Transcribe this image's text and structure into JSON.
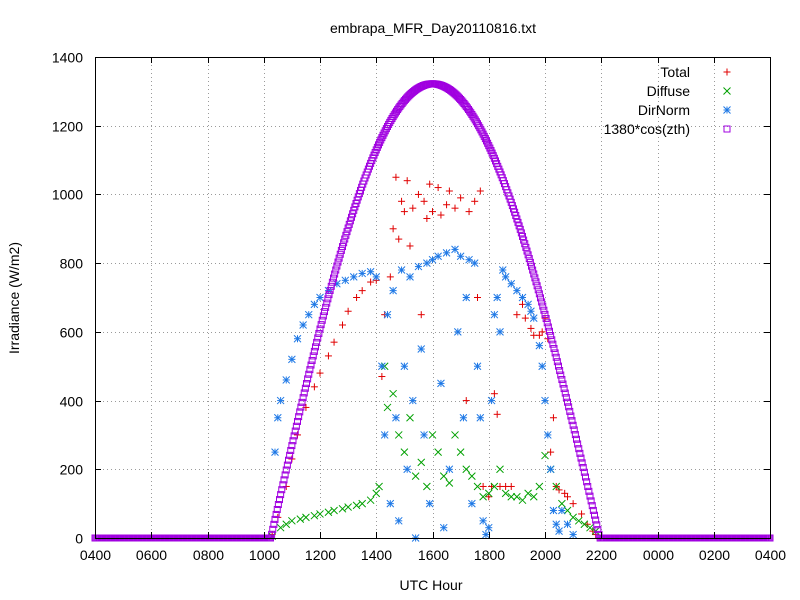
{
  "chart_data": {
    "type": "scatter",
    "title": "embrapa_MFR_Day20110816.txt",
    "xlabel": "UTC Hour",
    "ylabel": "Irradiance (W/m2)",
    "xlim": [
      4,
      28
    ],
    "ylim": [
      0,
      1400
    ],
    "x_ticks": [
      {
        "value": 4,
        "label": "0400"
      },
      {
        "value": 6,
        "label": "0600"
      },
      {
        "value": 8,
        "label": "0800"
      },
      {
        "value": 10,
        "label": "1000"
      },
      {
        "value": 12,
        "label": "1200"
      },
      {
        "value": 14,
        "label": "1400"
      },
      {
        "value": 16,
        "label": "1600"
      },
      {
        "value": 18,
        "label": "1800"
      },
      {
        "value": 20,
        "label": "2000"
      },
      {
        "value": 22,
        "label": "2200"
      },
      {
        "value": 24,
        "label": "0000"
      },
      {
        "value": 26,
        "label": "0200"
      },
      {
        "value": 28,
        "label": "0400"
      }
    ],
    "y_ticks": [
      0,
      200,
      400,
      600,
      800,
      1000,
      1200,
      1400
    ],
    "grid": true,
    "legend_position": "top-right",
    "series": [
      {
        "name": "Total",
        "marker": "plus",
        "color": "#e00000",
        "points": [
          [
            10.3,
            10
          ],
          [
            10.5,
            60
          ],
          [
            10.8,
            150
          ],
          [
            11.0,
            230
          ],
          [
            11.2,
            300
          ],
          [
            11.5,
            380
          ],
          [
            11.8,
            440
          ],
          [
            12.0,
            480
          ],
          [
            12.3,
            530
          ],
          [
            12.5,
            570
          ],
          [
            12.8,
            620
          ],
          [
            13.0,
            660
          ],
          [
            13.3,
            700
          ],
          [
            13.5,
            720
          ],
          [
            13.8,
            745
          ],
          [
            14.0,
            750
          ],
          [
            14.2,
            470
          ],
          [
            14.3,
            650
          ],
          [
            14.5,
            760
          ],
          [
            14.6,
            900
          ],
          [
            14.7,
            1050
          ],
          [
            14.8,
            870
          ],
          [
            14.9,
            980
          ],
          [
            15.0,
            950
          ],
          [
            15.1,
            1040
          ],
          [
            15.2,
            850
          ],
          [
            15.3,
            960
          ],
          [
            15.5,
            1000
          ],
          [
            15.6,
            650
          ],
          [
            15.7,
            980
          ],
          [
            15.8,
            930
          ],
          [
            15.9,
            1030
          ],
          [
            16.0,
            950
          ],
          [
            16.2,
            1020
          ],
          [
            16.3,
            940
          ],
          [
            16.5,
            970
          ],
          [
            16.6,
            1010
          ],
          [
            16.8,
            960
          ],
          [
            17.0,
            990
          ],
          [
            17.2,
            400
          ],
          [
            17.3,
            950
          ],
          [
            17.5,
            980
          ],
          [
            17.6,
            700
          ],
          [
            17.7,
            1010
          ],
          [
            17.8,
            150
          ],
          [
            18.0,
            120
          ],
          [
            18.1,
            150
          ],
          [
            18.2,
            420
          ],
          [
            18.3,
            360
          ],
          [
            18.4,
            150
          ],
          [
            18.6,
            150
          ],
          [
            18.8,
            150
          ],
          [
            19.0,
            650
          ],
          [
            19.2,
            680
          ],
          [
            19.3,
            640
          ],
          [
            19.5,
            610
          ],
          [
            19.6,
            590
          ],
          [
            19.8,
            590
          ],
          [
            19.9,
            600
          ],
          [
            20.0,
            640
          ],
          [
            20.1,
            580
          ],
          [
            20.2,
            250
          ],
          [
            20.3,
            350
          ],
          [
            20.4,
            150
          ],
          [
            20.5,
            140
          ],
          [
            20.7,
            130
          ],
          [
            20.8,
            120
          ],
          [
            21.0,
            100
          ],
          [
            21.3,
            70
          ],
          [
            21.5,
            40
          ],
          [
            21.7,
            20
          ],
          [
            21.8,
            10
          ]
        ]
      },
      {
        "name": "Diffuse",
        "marker": "cross",
        "color": "#00a000",
        "points": [
          [
            10.3,
            5
          ],
          [
            10.6,
            30
          ],
          [
            10.8,
            40
          ],
          [
            11.0,
            50
          ],
          [
            11.3,
            55
          ],
          [
            11.5,
            60
          ],
          [
            11.8,
            65
          ],
          [
            12.0,
            70
          ],
          [
            12.3,
            75
          ],
          [
            12.5,
            80
          ],
          [
            12.8,
            85
          ],
          [
            13.0,
            90
          ],
          [
            13.3,
            95
          ],
          [
            13.5,
            100
          ],
          [
            13.8,
            110
          ],
          [
            14.0,
            130
          ],
          [
            14.1,
            150
          ],
          [
            14.3,
            500
          ],
          [
            14.4,
            380
          ],
          [
            14.6,
            420
          ],
          [
            14.8,
            300
          ],
          [
            15.0,
            250
          ],
          [
            15.2,
            350
          ],
          [
            15.4,
            180
          ],
          [
            15.6,
            220
          ],
          [
            15.8,
            150
          ],
          [
            16.0,
            300
          ],
          [
            16.2,
            250
          ],
          [
            16.4,
            180
          ],
          [
            16.6,
            160
          ],
          [
            16.8,
            300
          ],
          [
            17.0,
            250
          ],
          [
            17.2,
            200
          ],
          [
            17.4,
            180
          ],
          [
            17.6,
            150
          ],
          [
            17.8,
            120
          ],
          [
            18.0,
            130
          ],
          [
            18.2,
            150
          ],
          [
            18.4,
            200
          ],
          [
            18.6,
            130
          ],
          [
            18.8,
            120
          ],
          [
            19.0,
            120
          ],
          [
            19.2,
            110
          ],
          [
            19.4,
            130
          ],
          [
            19.6,
            120
          ],
          [
            19.8,
            150
          ],
          [
            20.0,
            240
          ],
          [
            20.2,
            200
          ],
          [
            20.4,
            150
          ],
          [
            20.6,
            100
          ],
          [
            20.8,
            80
          ],
          [
            21.0,
            60
          ],
          [
            21.2,
            50
          ],
          [
            21.4,
            40
          ],
          [
            21.6,
            30
          ],
          [
            21.8,
            20
          ]
        ]
      },
      {
        "name": "DirNorm",
        "marker": "star",
        "color": "#1e78e6",
        "points": [
          [
            10.4,
            250
          ],
          [
            10.5,
            350
          ],
          [
            10.6,
            400
          ],
          [
            10.8,
            460
          ],
          [
            11.0,
            520
          ],
          [
            11.2,
            580
          ],
          [
            11.4,
            620
          ],
          [
            11.6,
            650
          ],
          [
            11.8,
            680
          ],
          [
            12.0,
            700
          ],
          [
            12.3,
            720
          ],
          [
            12.6,
            740
          ],
          [
            12.9,
            750
          ],
          [
            13.2,
            760
          ],
          [
            13.5,
            770
          ],
          [
            13.8,
            775
          ],
          [
            14.0,
            760
          ],
          [
            14.2,
            500
          ],
          [
            14.3,
            300
          ],
          [
            14.4,
            650
          ],
          [
            14.5,
            100
          ],
          [
            14.6,
            720
          ],
          [
            14.7,
            350
          ],
          [
            14.8,
            50
          ],
          [
            14.9,
            780
          ],
          [
            15.0,
            500
          ],
          [
            15.1,
            200
          ],
          [
            15.2,
            760
          ],
          [
            15.3,
            400
          ],
          [
            15.4,
            0
          ],
          [
            15.5,
            790
          ],
          [
            15.6,
            550
          ],
          [
            15.7,
            300
          ],
          [
            15.8,
            800
          ],
          [
            15.9,
            100
          ],
          [
            16.0,
            810
          ],
          [
            16.2,
            820
          ],
          [
            16.3,
            450
          ],
          [
            16.4,
            30
          ],
          [
            16.5,
            830
          ],
          [
            16.6,
            200
          ],
          [
            16.8,
            840
          ],
          [
            16.9,
            600
          ],
          [
            17.0,
            820
          ],
          [
            17.1,
            350
          ],
          [
            17.2,
            700
          ],
          [
            17.3,
            810
          ],
          [
            17.4,
            100
          ],
          [
            17.5,
            800
          ],
          [
            17.6,
            500
          ],
          [
            17.7,
            350
          ],
          [
            17.8,
            50
          ],
          [
            17.9,
            10
          ],
          [
            18.0,
            30
          ],
          [
            18.1,
            400
          ],
          [
            18.2,
            650
          ],
          [
            18.3,
            700
          ],
          [
            18.4,
            600
          ],
          [
            18.5,
            780
          ],
          [
            18.6,
            760
          ],
          [
            18.8,
            740
          ],
          [
            19.0,
            720
          ],
          [
            19.2,
            700
          ],
          [
            19.4,
            680
          ],
          [
            19.5,
            660
          ],
          [
            19.6,
            640
          ],
          [
            19.8,
            560
          ],
          [
            19.9,
            500
          ],
          [
            20.0,
            400
          ],
          [
            20.1,
            300
          ],
          [
            20.2,
            200
          ],
          [
            20.3,
            80
          ],
          [
            20.4,
            40
          ],
          [
            20.5,
            20
          ],
          [
            20.6,
            80
          ],
          [
            20.8,
            40
          ],
          [
            21.0,
            10
          ]
        ]
      },
      {
        "name": "1380*cos(zth)",
        "marker": "square",
        "color": "#a000e0",
        "curve": {
          "peak": 1322,
          "peak_hour": 16.0,
          "sunrise": 10.25,
          "sunset": 21.95,
          "step": 0.04
        }
      }
    ]
  }
}
